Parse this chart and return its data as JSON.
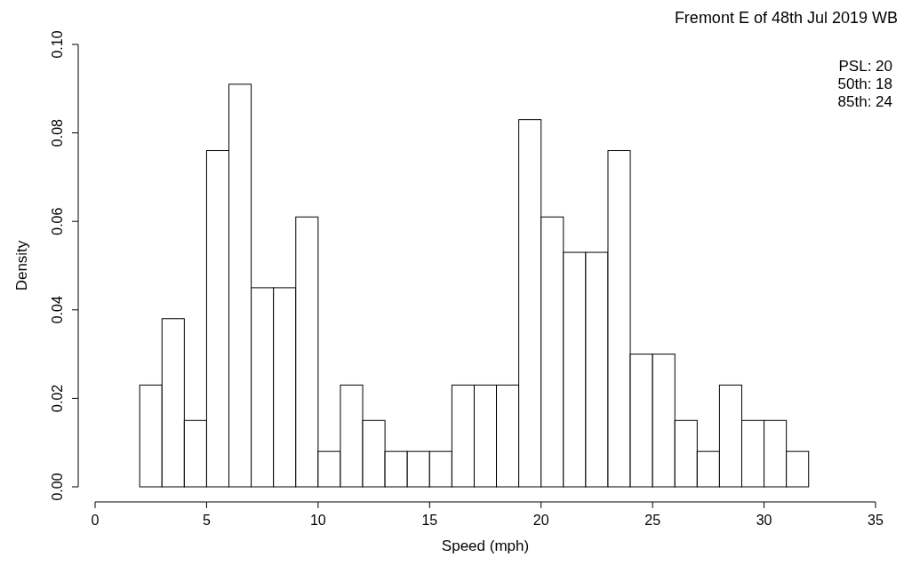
{
  "chart_data": {
    "type": "histogram",
    "title": "Fremont E of 48th Jul 2019 WB",
    "xlabel": "Speed (mph)",
    "ylabel": "Density",
    "bins": [
      2,
      3,
      4,
      5,
      6,
      7,
      8,
      9,
      10,
      11,
      12,
      13,
      14,
      15,
      16,
      17,
      18,
      19,
      20,
      21,
      22,
      23,
      24,
      25,
      26,
      27,
      28,
      29,
      30,
      31,
      32
    ],
    "values": [
      0.023,
      0.038,
      0.015,
      0.076,
      0.091,
      0.045,
      0.045,
      0.061,
      0.008,
      0.023,
      0.015,
      0.008,
      0.008,
      0.008,
      0.023,
      0.023,
      0.023,
      0.083,
      0.061,
      0.053,
      0.053,
      0.076,
      0.03,
      0.03,
      0.015,
      0.008,
      0.023,
      0.015,
      0.015,
      0.008
    ],
    "color": "#ffffff",
    "xlim": [
      0,
      35
    ],
    "xticks": [
      0,
      5,
      10,
      15,
      20,
      25,
      30,
      35
    ],
    "ylim": [
      0,
      0.1
    ],
    "yticks": [
      {
        "value": 0,
        "label": "0.00"
      },
      {
        "value": 0.02,
        "label": "0.02"
      },
      {
        "value": 0.04,
        "label": "0.04"
      },
      {
        "value": 0.06,
        "label": "0.06"
      },
      {
        "value": 0.08,
        "label": "0.08"
      },
      {
        "value": 0.1,
        "label": "0.10"
      }
    ],
    "grid": false,
    "annotations": [
      "PSL: 20",
      "50th: 18",
      "85th: 24"
    ]
  }
}
